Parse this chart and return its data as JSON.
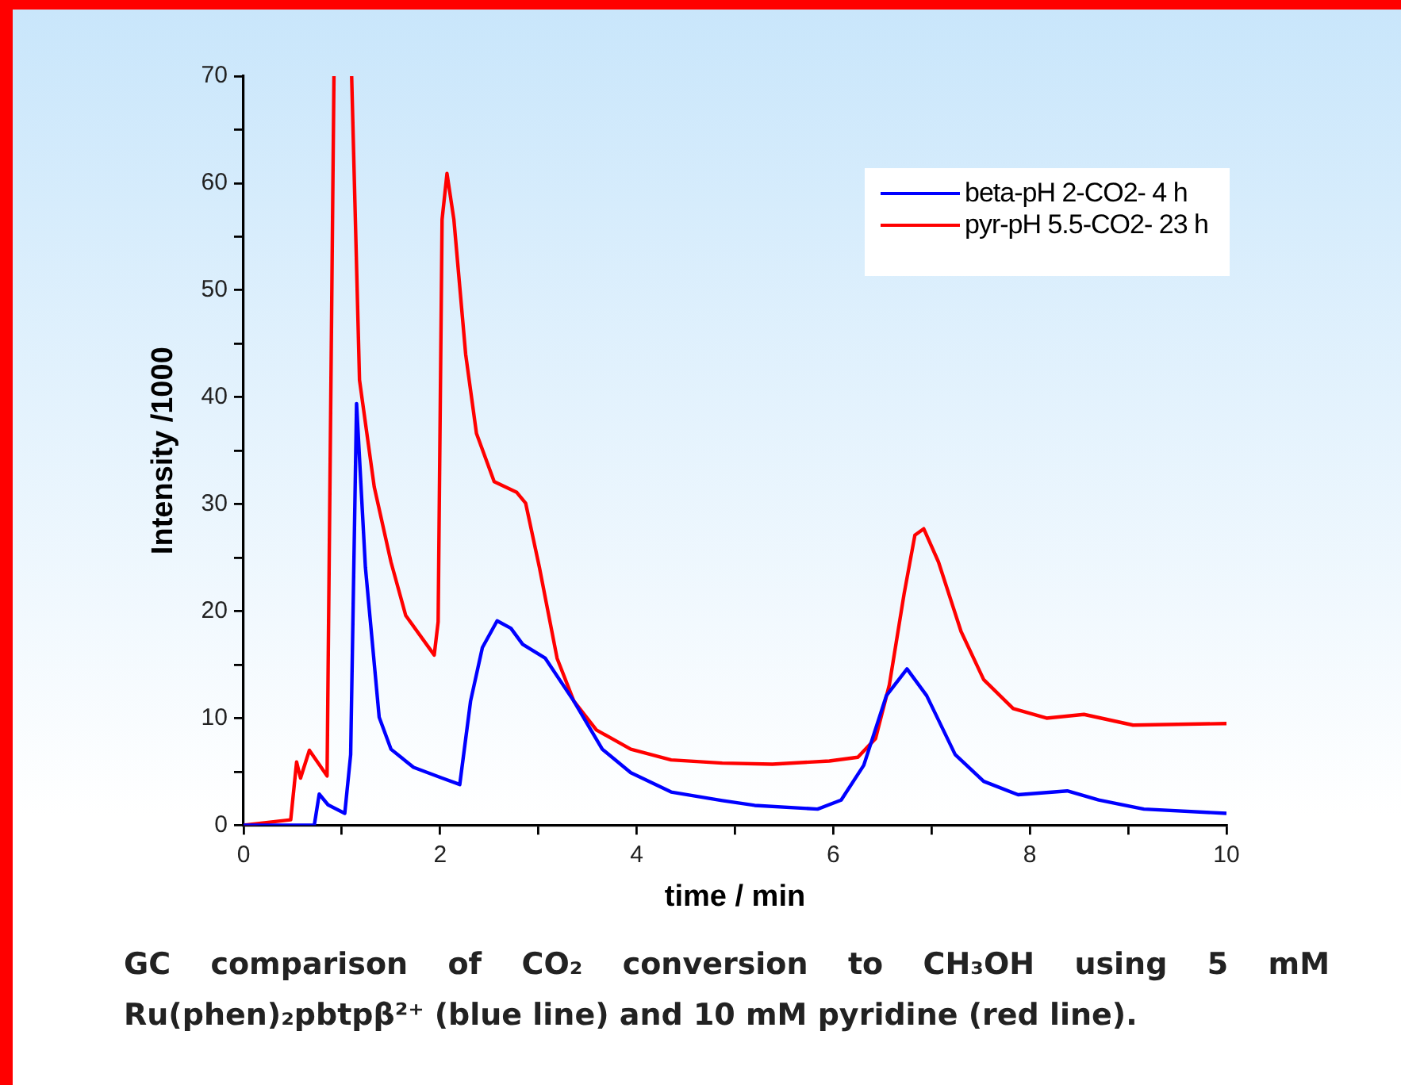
{
  "chart_data": {
    "type": "line",
    "xlabel": "time / min",
    "ylabel": "Intensity /1000",
    "xlim": [
      0,
      10
    ],
    "xticks": [
      0,
      {
        "value": 1,
        "label": null
      },
      2,
      {
        "value": 3,
        "label": null
      },
      4,
      {
        "value": 5,
        "label": null
      },
      6,
      {
        "value": 7,
        "label": null
      },
      8,
      {
        "value": 9,
        "label": null
      },
      10
    ],
    "ylim": [
      0,
      70
    ],
    "yticks": [
      0,
      {
        "value": 5,
        "label": null
      },
      10,
      {
        "value": 15,
        "label": null
      },
      20,
      {
        "value": 25,
        "label": null
      },
      30,
      {
        "value": 35,
        "label": null
      },
      40,
      {
        "value": 45,
        "label": null
      },
      50,
      {
        "value": 55,
        "label": null
      },
      60,
      {
        "value": 65,
        "label": null
      },
      70
    ],
    "grid": false,
    "legend": "top right",
    "marker": "none",
    "line_style": "solid",
    "series": [
      {
        "name": "beta-pH 2-CO2- 4 h",
        "color": "#0000ff",
        "x": [
          0,
          0.72,
          0.77,
          0.86,
          1.03,
          1.09,
          1.15,
          1.24,
          1.38,
          1.5,
          1.73,
          2.02,
          2.2,
          2.31,
          2.43,
          2.58,
          2.72,
          2.84,
          3.07,
          3.36,
          3.65,
          3.94,
          4.35,
          4.87,
          5.2,
          5.84,
          6.08,
          6.31,
          6.54,
          6.75,
          6.95,
          7.24,
          7.53,
          7.88,
          8.38,
          8.7,
          9.16,
          10
        ],
        "values": [
          0,
          0,
          2.9,
          1.9,
          1.1,
          6.6,
          39.4,
          24.1,
          10.1,
          7.1,
          5.4,
          4.4,
          3.8,
          11.6,
          16.6,
          19.1,
          18.4,
          16.9,
          15.6,
          11.6,
          7.1,
          4.9,
          3.1,
          2.3,
          1.85,
          1.5,
          2.35,
          5.6,
          12.1,
          14.6,
          12.1,
          6.6,
          4.1,
          2.85,
          3.2,
          2.35,
          1.5,
          1.1
        ]
      },
      {
        "name": "pyr-pH 5.5-CO2- 23 h",
        "color": "#ff0000",
        "x": [
          0,
          0.48,
          0.54,
          0.58,
          0.67,
          0.85,
          0.92,
          1.0,
          1.1,
          1.18,
          1.33,
          1.5,
          1.65,
          1.94,
          1.98,
          2.02,
          2.07,
          2.14,
          2.26,
          2.37,
          2.55,
          2.78,
          2.87,
          3.01,
          3.19,
          3.36,
          3.59,
          3.94,
          4.35,
          4.87,
          5.38,
          5.96,
          6.25,
          6.43,
          6.57,
          6.72,
          6.83,
          6.92,
          7.07,
          7.3,
          7.53,
          7.83,
          8.17,
          8.55,
          9.05,
          10
        ],
        "values": [
          0,
          0.5,
          5.9,
          4.4,
          7,
          4.6,
          70,
          null,
          70,
          41.6,
          31.6,
          24.6,
          19.6,
          15.9,
          19,
          56.6,
          60.9,
          56.6,
          44,
          36.6,
          32.1,
          31.1,
          30.1,
          24.1,
          15.6,
          11.6,
          8.9,
          7.1,
          6.1,
          5.8,
          5.7,
          6,
          6.35,
          8.1,
          13.1,
          21.6,
          27.1,
          27.7,
          24.6,
          18.1,
          13.6,
          10.9,
          10,
          10.35,
          9.35,
          9.5
        ]
      }
    ],
    "annotations": [
      "GC comparison of CO₂ conversion  to CH₃OH using 5 mM Ru(phen)₂pbtpβ²⁺ (blue line) and 10 mM pyridine (red line)."
    ]
  }
}
